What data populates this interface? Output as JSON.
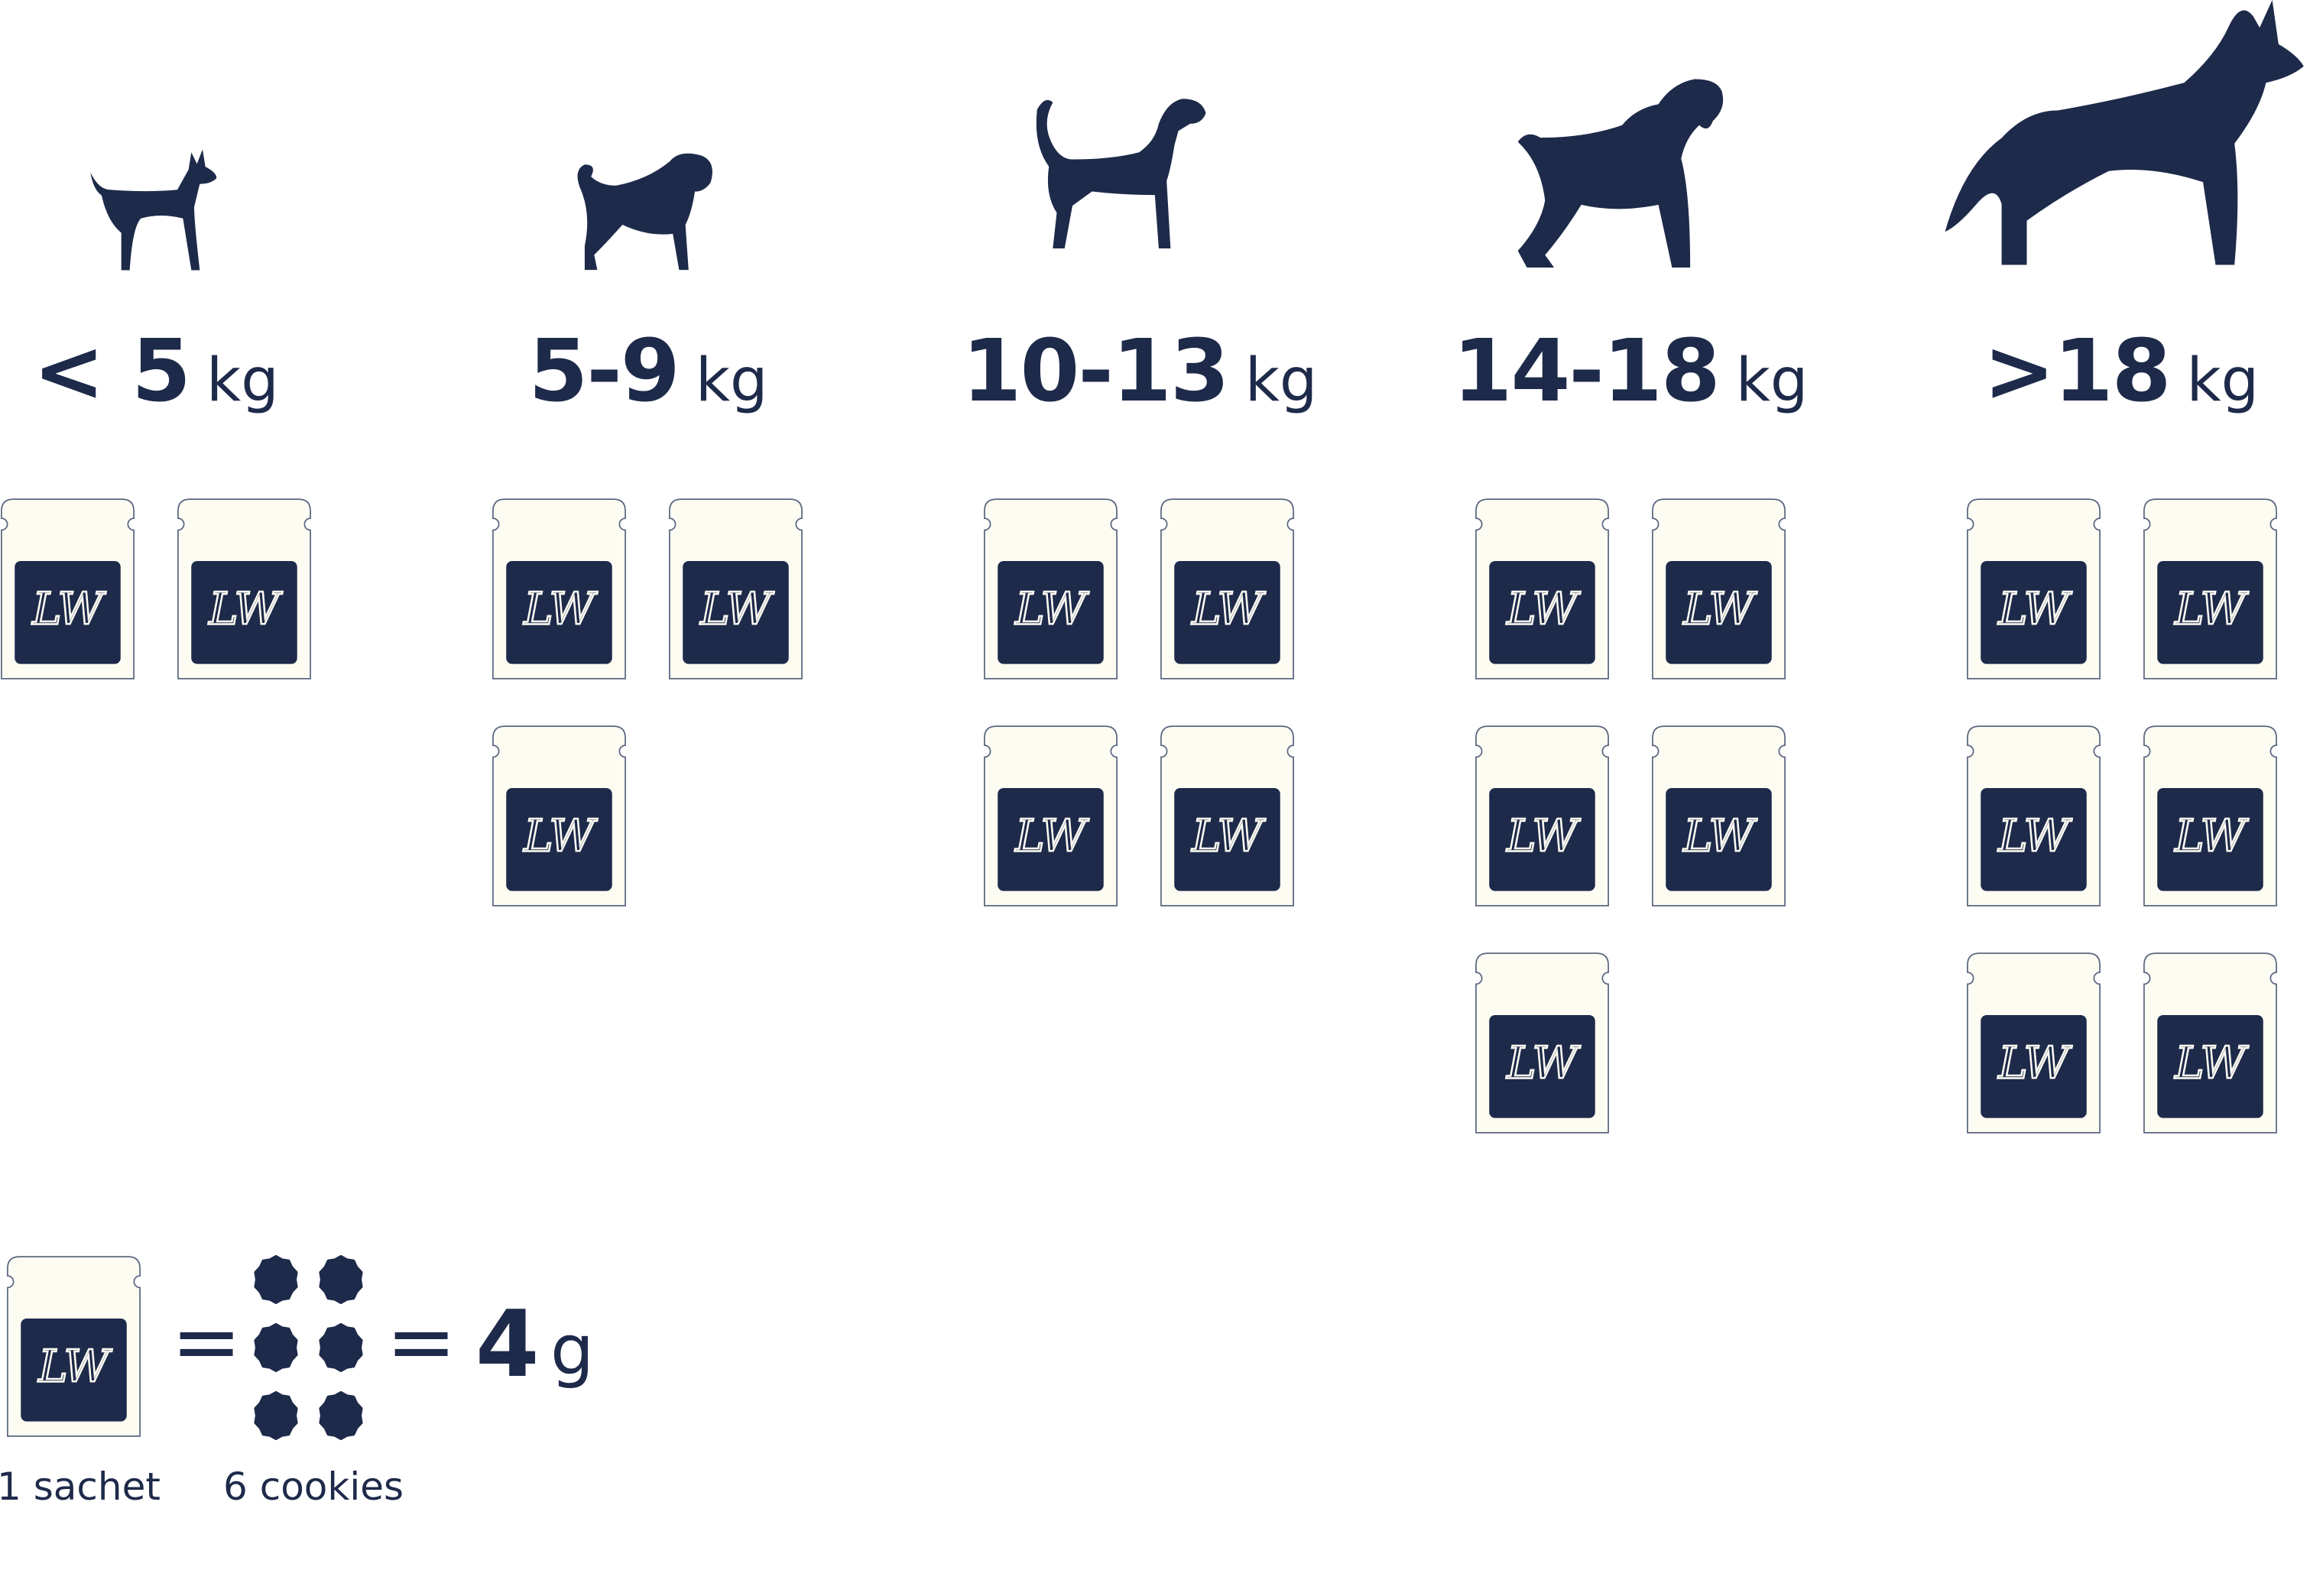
{
  "colors": {
    "navy": "#1e2a4a",
    "sachet_fill": "#fdfcf3",
    "sachet_border": "#5a6680"
  },
  "logo_text": "LW",
  "groups": [
    {
      "dog_icon": "chihuahua-silhouette-icon",
      "range": "< 5",
      "unit": "kg",
      "sachets": 2
    },
    {
      "dog_icon": "pug-silhouette-icon",
      "range": "5-9",
      "unit": "kg",
      "sachets": 3
    },
    {
      "dog_icon": "beagle-silhouette-icon",
      "range": "10-13",
      "unit": "kg",
      "sachets": 4
    },
    {
      "dog_icon": "schnauzer-silhouette-icon",
      "range": "14-18",
      "unit": "kg",
      "sachets": 5
    },
    {
      "dog_icon": "husky-silhouette-icon",
      "range": ">18",
      "unit": "kg",
      "sachets": 6
    }
  ],
  "legend": {
    "equals": "=",
    "cookies_count": 6,
    "amount": "4",
    "amount_unit": "g",
    "sachet_caption": "1 sachet",
    "cookies_caption": "6 cookies"
  }
}
